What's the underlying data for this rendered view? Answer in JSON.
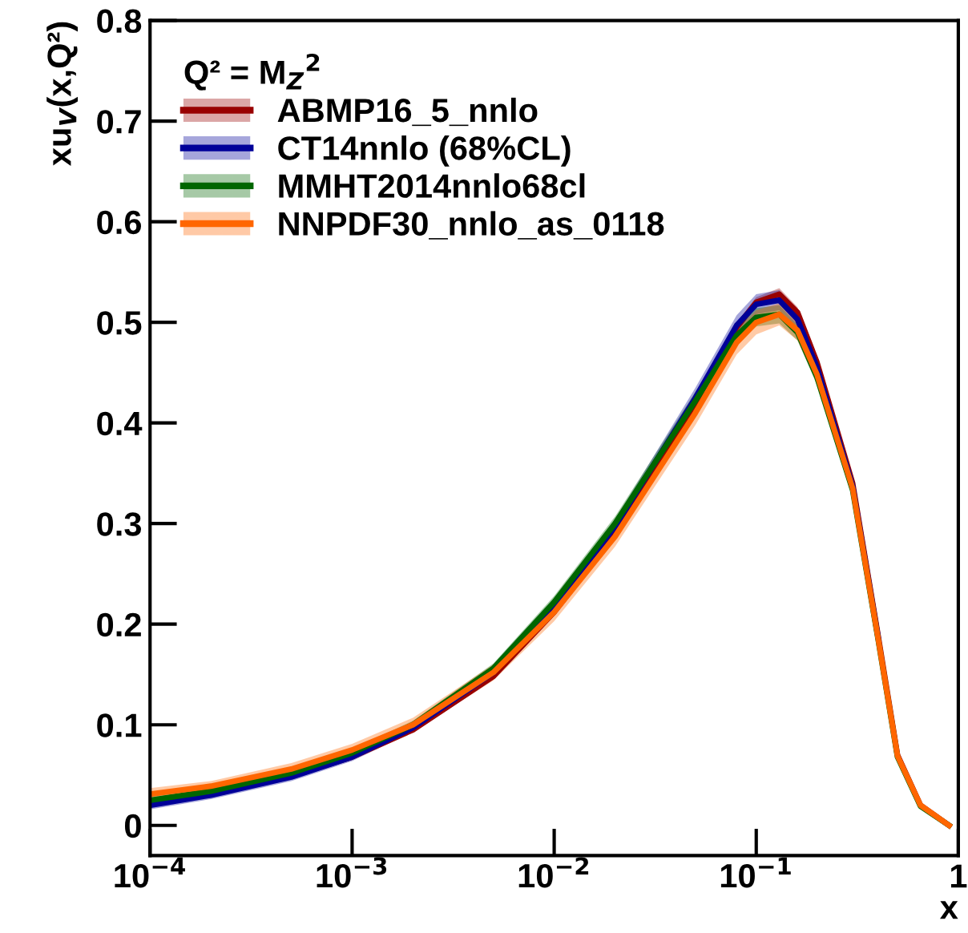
{
  "chart_data": {
    "type": "line",
    "xlabel": "x",
    "ylabel": "xu$_{V}$(x,Q²)",
    "legend_title": "Q² = M$_{Z}$$^{2}$",
    "log": "x",
    "grid": false,
    "legend": "top left",
    "marker": "none",
    "line_style": "solid",
    "xlim": [
      0.0001,
      1
    ],
    "xticks": [
      {
        "value": 0.0001,
        "label": "10$^{−4}$"
      },
      {
        "value": 0.001,
        "label": "10$^{−3}$"
      },
      {
        "value": 0.01,
        "label": "10$^{−2}$"
      },
      {
        "value": 0.1,
        "label": "10$^{−1}$"
      },
      1
    ],
    "ylim": [
      -0.03,
      0.8
    ],
    "yticks": [
      0,
      0.1,
      0.2,
      0.3,
      0.4,
      0.5,
      0.6,
      0.7,
      0.8
    ],
    "x": [
      0.0001,
      0.0002,
      0.0005,
      0.001,
      0.002,
      0.005,
      0.01,
      0.02,
      0.05,
      0.08,
      0.1,
      0.13,
      0.16,
      0.2,
      0.3,
      0.4,
      0.5,
      0.65,
      0.9
    ],
    "series": [
      {
        "name": "ABMP16_5_nnlo",
        "color": "#990000",
        "values": [
          null,
          null,
          0.049,
          0.068,
          0.095,
          0.148,
          0.212,
          0.29,
          0.42,
          0.495,
          0.52,
          0.528,
          0.51,
          0.46,
          0.34,
          0.19,
          0.07,
          0.02,
          0.0
        ],
        "lower": [
          0.02,
          0.03,
          0.047,
          0.066,
          0.093,
          0.146,
          0.209,
          0.287,
          0.416,
          0.49,
          0.515,
          0.522,
          0.505,
          0.455,
          0.335,
          0.186,
          0.067,
          0.018,
          0.0
        ],
        "upper": [
          0.024,
          0.034,
          0.051,
          0.07,
          0.097,
          0.15,
          0.215,
          0.293,
          0.424,
          0.5,
          0.525,
          0.534,
          0.515,
          0.465,
          0.345,
          0.194,
          0.073,
          0.022,
          0.002
        ]
      },
      {
        "name": "CT14nnlo (68%CL)",
        "color": "#000099",
        "values": [
          0.02,
          0.03,
          0.048,
          0.068,
          0.097,
          0.152,
          0.218,
          0.297,
          0.425,
          0.497,
          0.518,
          0.522,
          0.503,
          0.455,
          0.337,
          0.188,
          null,
          null,
          null
        ],
        "lower": [
          0.016,
          0.026,
          0.044,
          0.064,
          0.093,
          0.147,
          0.212,
          0.29,
          0.415,
          0.487,
          0.508,
          0.512,
          0.494,
          0.447,
          0.331,
          0.184,
          0.066,
          0.018,
          0.0
        ],
        "upper": [
          0.024,
          0.034,
          0.052,
          0.072,
          0.101,
          0.157,
          0.224,
          0.304,
          0.435,
          0.507,
          0.528,
          0.532,
          0.512,
          0.463,
          0.343,
          0.192,
          0.072,
          0.022,
          0.002
        ]
      },
      {
        "name": "MMHT2014nnlo68cl",
        "color": "#006600",
        "values": [
          0.025,
          0.034,
          0.052,
          0.072,
          0.1,
          0.156,
          0.222,
          0.3,
          0.422,
          0.487,
          0.505,
          0.508,
          0.49,
          0.445,
          0.333,
          0.186,
          0.068,
          0.019,
          0.0
        ],
        "lower": [
          0.021,
          0.03,
          0.048,
          0.068,
          0.096,
          0.151,
          0.216,
          0.293,
          0.413,
          0.478,
          0.496,
          0.499,
          0.482,
          0.438,
          0.328,
          0.182,
          0.065,
          0.017,
          0.0
        ],
        "upper": [
          0.029,
          0.038,
          0.056,
          0.076,
          0.104,
          0.161,
          0.228,
          0.307,
          0.431,
          0.496,
          0.514,
          0.517,
          0.498,
          0.452,
          0.338,
          0.19,
          0.071,
          0.021,
          0.002
        ]
      },
      {
        "name": "NNPDF30_nnlo_as_0118",
        "color": "#ff6600",
        "values": [
          0.031,
          0.039,
          0.056,
          0.075,
          0.1,
          0.152,
          0.212,
          0.287,
          0.41,
          0.48,
          0.5,
          0.508,
          0.492,
          0.448,
          0.335,
          0.187,
          0.069,
          0.02,
          0.0
        ],
        "lower": [
          0.025,
          0.034,
          0.05,
          0.069,
          0.093,
          0.144,
          0.203,
          0.277,
          0.398,
          0.468,
          0.488,
          0.497,
          0.482,
          0.44,
          0.329,
          0.183,
          0.066,
          0.018,
          0.0
        ],
        "upper": [
          0.037,
          0.044,
          0.062,
          0.081,
          0.107,
          0.16,
          0.221,
          0.297,
          0.422,
          0.492,
          0.512,
          0.519,
          0.502,
          0.456,
          0.341,
          0.191,
          0.072,
          0.022,
          0.002
        ]
      }
    ]
  }
}
